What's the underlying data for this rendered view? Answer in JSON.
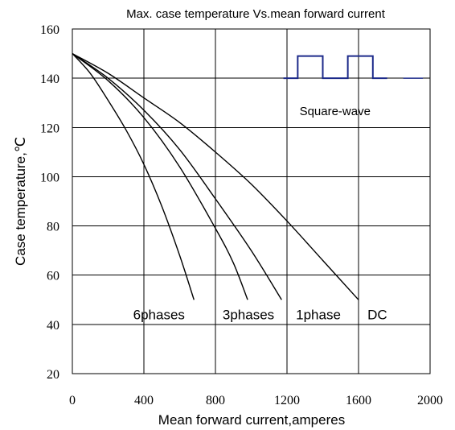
{
  "chart_data": {
    "type": "line",
    "title": "Max. case temperature Vs.mean forward current",
    "xlabel": "Mean forward current,amperes",
    "ylabel": "Case temperature,℃",
    "xlim": [
      0,
      2000
    ],
    "ylim": [
      20,
      160
    ],
    "xticks": [
      0,
      400,
      800,
      1200,
      1600,
      2000
    ],
    "yticks": [
      20,
      40,
      60,
      80,
      100,
      120,
      140,
      160
    ],
    "grid": true,
    "series": [
      {
        "name": "6phases",
        "x": [
          0,
          100,
          200,
          300,
          400,
          500,
          600,
          680
        ],
        "y": [
          150,
          142,
          131,
          119,
          105,
          88,
          68,
          50
        ]
      },
      {
        "name": "3phases",
        "x": [
          0,
          200,
          400,
          600,
          800,
          900,
          980
        ],
        "y": [
          150,
          139,
          124,
          104,
          79,
          65,
          50
        ]
      },
      {
        "name": "1phase",
        "x": [
          0,
          200,
          400,
          600,
          800,
          1000,
          1170
        ],
        "y": [
          150,
          140,
          127,
          111,
          91,
          70,
          50
        ]
      },
      {
        "name": "DC",
        "x": [
          0,
          200,
          400,
          600,
          800,
          1000,
          1200,
          1400,
          1600
        ],
        "y": [
          150,
          142,
          132,
          122,
          110,
          97,
          82,
          66,
          50
        ]
      }
    ],
    "series_labels": [
      {
        "text": "6phases",
        "x": 340,
        "y": 42
      },
      {
        "text": "3phases",
        "x": 840,
        "y": 42
      },
      {
        "text": "1phase",
        "x": 1250,
        "y": 42
      },
      {
        "text": "DC",
        "x": 1650,
        "y": 42
      }
    ],
    "inset": {
      "label": "Square-wave",
      "wave": [
        [
          1180,
          140
        ],
        [
          1260,
          140
        ],
        [
          1260,
          149
        ],
        [
          1400,
          149
        ],
        [
          1400,
          140
        ],
        [
          1540,
          140
        ],
        [
          1540,
          149
        ],
        [
          1680,
          149
        ],
        [
          1680,
          140
        ],
        [
          1760,
          140
        ]
      ],
      "gap_segment": [
        1850,
        140,
        1960,
        140
      ],
      "label_position": {
        "x": 1270,
        "y": 125
      },
      "color": "#1c2a8a"
    }
  }
}
